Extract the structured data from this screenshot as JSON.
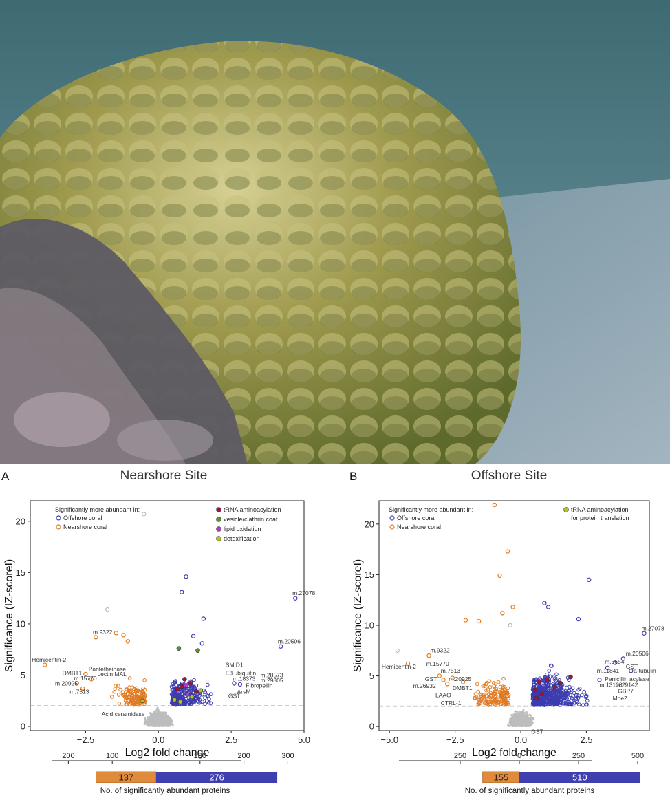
{
  "colors": {
    "offshore": "#3b3cb0",
    "nearshore": "#e07a22",
    "nonsig": "#bdbdbd",
    "trna": "#a0134a",
    "vesicle": "#4f9a2b",
    "lipid": "#b43cc8",
    "detox": "#b8c21a",
    "bar_nearshore": "#e08a3c",
    "bar_offshore": "#3f3fb0"
  },
  "photo": {
    "icon": "coral-reef-photo"
  },
  "chart_data": [
    {
      "type": "scatter",
      "panel_label": "A",
      "title": "Nearshore Site",
      "xlabel": "Log2 fold change",
      "ylabel": "Significance (IZ-scoreI)",
      "xlim": [
        -4.4,
        5.0
      ],
      "ylim": [
        -0.4,
        22
      ],
      "x_ticks": [
        -2.5,
        0.0,
        2.5,
        5.0
      ],
      "x_tick_labels": [
        "−2.5",
        "0.0",
        "2.5",
        "5.0"
      ],
      "y_ticks": [
        0,
        5,
        10,
        15,
        20
      ],
      "y_tick_labels": [
        "0",
        "5",
        "10",
        "15",
        "20"
      ],
      "threshold": 2.0,
      "grid": false,
      "legend_heading": "Significantly more abundant in:",
      "legend_groups": [
        {
          "name": "Offshore coral",
          "color": "#3b3cb0"
        },
        {
          "name": "Nearshore coral",
          "color": "#e07a22"
        }
      ],
      "legend_categories": [
        {
          "name": "tRNA aminoacylation",
          "color": "#a0134a"
        },
        {
          "name": "vesicle/clathrin coat",
          "color": "#4f9a2b"
        },
        {
          "name": "lipid oxidation",
          "color": "#b43cc8"
        },
        {
          "name": "detoxification",
          "color": "#b8c21a"
        }
      ],
      "highlight_points": [
        {
          "x": 4.7,
          "y": 12.5,
          "group": "offshore"
        },
        {
          "x": 4.2,
          "y": 7.8,
          "group": "offshore"
        },
        {
          "x": 0.95,
          "y": 14.6,
          "group": "offshore"
        },
        {
          "x": 0.8,
          "y": 13.1,
          "group": "offshore"
        },
        {
          "x": 1.55,
          "y": 10.5,
          "group": "offshore"
        },
        {
          "x": 1.2,
          "y": 8.8,
          "group": "offshore"
        },
        {
          "x": 1.5,
          "y": 8.1,
          "group": "offshore"
        },
        {
          "x": 2.6,
          "y": 4.2,
          "group": "offshore"
        },
        {
          "x": 2.8,
          "y": 4.1,
          "group": "offshore"
        },
        {
          "x": -3.9,
          "y": 6.0,
          "group": "nearshore"
        },
        {
          "x": -2.15,
          "y": 8.7,
          "group": "nearshore"
        },
        {
          "x": -1.45,
          "y": 9.1,
          "group": "nearshore"
        },
        {
          "x": -1.2,
          "y": 8.9,
          "group": "nearshore"
        },
        {
          "x": -1.05,
          "y": 8.3,
          "group": "nearshore"
        },
        {
          "x": -2.5,
          "y": 5.1,
          "group": "nearshore"
        },
        {
          "x": -2.8,
          "y": 4.2,
          "group": "nearshore"
        },
        {
          "x": -2.6,
          "y": 3.7,
          "group": "nearshore"
        },
        {
          "x": -2.3,
          "y": 4.6,
          "group": "nearshore"
        },
        {
          "x": -1.75,
          "y": 11.4,
          "group": "nonsig"
        },
        {
          "x": -0.5,
          "y": 20.7,
          "group": "nonsig"
        },
        {
          "x": 0.7,
          "y": 7.6,
          "group": "vesicle"
        },
        {
          "x": 1.35,
          "y": 7.4,
          "group": "vesicle"
        },
        {
          "x": 0.9,
          "y": 4.6,
          "group": "trna"
        },
        {
          "x": 1.1,
          "y": 4.2,
          "group": "trna"
        },
        {
          "x": 0.8,
          "y": 3.9,
          "group": "trna"
        },
        {
          "x": 1.3,
          "y": 3.4,
          "group": "trna"
        },
        {
          "x": 0.65,
          "y": 3.6,
          "group": "trna"
        },
        {
          "x": 1.0,
          "y": 3.1,
          "group": "lipid"
        },
        {
          "x": 0.95,
          "y": 4.0,
          "group": "lipid"
        },
        {
          "x": 0.55,
          "y": 2.6,
          "group": "detox"
        },
        {
          "x": 0.75,
          "y": 2.4,
          "group": "detox"
        },
        {
          "x": 1.15,
          "y": 2.9,
          "group": "detox"
        },
        {
          "x": 1.45,
          "y": 3.5,
          "group": "detox"
        },
        {
          "x": -0.55,
          "y": 2.5,
          "group": "detox"
        }
      ],
      "annotations": [
        {
          "text": "m.27078",
          "x": 4.6,
          "y": 12.8
        },
        {
          "text": "m.20506",
          "x": 4.1,
          "y": 8.1
        },
        {
          "text": "m.9322",
          "x": -2.25,
          "y": 9.0
        },
        {
          "text": "Hemicentin-2",
          "x": -4.35,
          "y": 6.3
        },
        {
          "text": "DMBT1",
          "x": -3.3,
          "y": 5.0
        },
        {
          "text": "Pantetheinase",
          "x": -2.4,
          "y": 5.4
        },
        {
          "text": "Lectin MAL",
          "x": -2.1,
          "y": 4.9
        },
        {
          "text": "m.15770",
          "x": -2.9,
          "y": 4.5
        },
        {
          "text": "m.20925",
          "x": -3.55,
          "y": 4.0
        },
        {
          "text": "m.7513",
          "x": -3.05,
          "y": 3.2
        },
        {
          "text": "Acid ceramidase",
          "x": -1.95,
          "y": 1.0
        },
        {
          "text": "SM D1",
          "x": 2.3,
          "y": 5.8
        },
        {
          "text": "E3 ubiquitin",
          "x": 2.3,
          "y": 5.0
        },
        {
          "text": "m.18373",
          "x": 2.55,
          "y": 4.45
        },
        {
          "text": "m.28573",
          "x": 3.5,
          "y": 4.8
        },
        {
          "text": "m.29805",
          "x": 3.5,
          "y": 4.3
        },
        {
          "text": "Fibropellin",
          "x": 3.0,
          "y": 3.8
        },
        {
          "text": "ArsM",
          "x": 2.7,
          "y": 3.2
        },
        {
          "text": "GST",
          "x": 2.4,
          "y": 2.8
        }
      ],
      "bar_axis_ticks": [
        200,
        100,
        100,
        200,
        300
      ],
      "bar_axis_tick_labels": [
        "200",
        "100",
        "100",
        "200",
        "300"
      ],
      "counts": {
        "nearshore": 137,
        "offshore": 276
      },
      "count_caption": "No. of significantly abundant proteins"
    },
    {
      "type": "scatter",
      "panel_label": "B",
      "title": "Offshore Site",
      "xlabel": "Log2 fold change",
      "ylabel": "Significance (IZ-scoreI)",
      "xlim": [
        -5.4,
        4.9
      ],
      "ylim": [
        -0.4,
        22.3
      ],
      "x_ticks": [
        -5.0,
        -2.5,
        0.0,
        2.5
      ],
      "x_tick_labels": [
        "−5.0",
        "−2.5",
        "0.0",
        "2.5"
      ],
      "y_ticks": [
        0,
        5,
        10,
        15,
        20
      ],
      "y_tick_labels": [
        "0",
        "5",
        "10",
        "15",
        "20"
      ],
      "threshold": 2.0,
      "grid": false,
      "legend_heading": "Significantly more abundant in:",
      "legend_groups": [
        {
          "name": "Offshore coral",
          "color": "#3b3cb0"
        },
        {
          "name": "Nearshore coral",
          "color": "#e07a22"
        }
      ],
      "legend_categories": [
        {
          "name": "tRNA aminoacylation",
          "name2": "for protein translation",
          "color": "#b8c21a"
        }
      ],
      "highlight_points": [
        {
          "x": -1.0,
          "y": 21.9,
          "group": "nearshore"
        },
        {
          "x": -0.5,
          "y": 17.3,
          "group": "nearshore"
        },
        {
          "x": -0.8,
          "y": 14.9,
          "group": "nearshore"
        },
        {
          "x": -0.3,
          "y": 11.8,
          "group": "nearshore"
        },
        {
          "x": -0.7,
          "y": 11.2,
          "group": "nearshore"
        },
        {
          "x": -2.1,
          "y": 10.5,
          "group": "nearshore"
        },
        {
          "x": -1.6,
          "y": 10.4,
          "group": "nearshore"
        },
        {
          "x": -3.5,
          "y": 7.0,
          "group": "nearshore"
        },
        {
          "x": -4.3,
          "y": 6.2,
          "group": "nearshore"
        },
        {
          "x": -3.1,
          "y": 5.0,
          "group": "nearshore"
        },
        {
          "x": -2.95,
          "y": 4.6,
          "group": "nearshore"
        },
        {
          "x": -2.6,
          "y": 4.8,
          "group": "nearshore"
        },
        {
          "x": -2.8,
          "y": 4.2,
          "group": "nearshore"
        },
        {
          "x": -2.2,
          "y": 4.4,
          "group": "nearshore"
        },
        {
          "x": -4.7,
          "y": 7.5,
          "group": "nonsig"
        },
        {
          "x": -0.4,
          "y": 10.0,
          "group": "nonsig"
        },
        {
          "x": 0.9,
          "y": 12.2,
          "group": "offshore"
        },
        {
          "x": 1.05,
          "y": 11.8,
          "group": "offshore"
        },
        {
          "x": 2.6,
          "y": 14.5,
          "group": "offshore"
        },
        {
          "x": 2.2,
          "y": 10.6,
          "group": "offshore"
        },
        {
          "x": 4.7,
          "y": 9.2,
          "group": "offshore"
        },
        {
          "x": 3.9,
          "y": 6.7,
          "group": "offshore"
        },
        {
          "x": 4.2,
          "y": 5.5,
          "group": "offshore"
        },
        {
          "x": 3.6,
          "y": 6.3,
          "group": "offshore"
        },
        {
          "x": 3.3,
          "y": 5.8,
          "group": "offshore"
        },
        {
          "x": 3.0,
          "y": 4.6,
          "group": "offshore"
        },
        {
          "x": 0.7,
          "y": 4.4,
          "group": "trna"
        },
        {
          "x": 1.0,
          "y": 4.6,
          "group": "trna"
        },
        {
          "x": 1.3,
          "y": 3.9,
          "group": "trna"
        },
        {
          "x": 0.55,
          "y": 3.6,
          "group": "trna"
        },
        {
          "x": 1.5,
          "y": 4.3,
          "group": "trna"
        },
        {
          "x": 0.8,
          "y": 3.2,
          "group": "trna"
        },
        {
          "x": 1.9,
          "y": 4.9,
          "group": "trna"
        },
        {
          "x": 0.6,
          "y": 2.8,
          "group": "trna"
        }
      ],
      "annotations": [
        {
          "text": "m.27078",
          "x": 4.6,
          "y": 9.5
        },
        {
          "text": "m.20506",
          "x": 4.0,
          "y": 7.0
        },
        {
          "text": "m.9322",
          "x": -3.45,
          "y": 7.3
        },
        {
          "text": "Hemicentin-2",
          "x": -5.3,
          "y": 5.7
        },
        {
          "text": "m.15770",
          "x": -3.6,
          "y": 6.0
        },
        {
          "text": "m.7513",
          "x": -3.05,
          "y": 5.3
        },
        {
          "text": "GST",
          "x": -3.65,
          "y": 4.5
        },
        {
          "text": "m.20925",
          "x": -2.75,
          "y": 4.5
        },
        {
          "text": "m.26932",
          "x": -4.1,
          "y": 3.8
        },
        {
          "text": "DMBT1",
          "x": -2.6,
          "y": 3.6
        },
        {
          "text": "LAAO",
          "x": -3.25,
          "y": 2.9
        },
        {
          "text": "CTRL-1",
          "x": -3.05,
          "y": 2.1
        },
        {
          "text": "GST",
          "x": 0.4,
          "y": -0.7
        },
        {
          "text": "m.3654",
          "x": 3.2,
          "y": 6.2
        },
        {
          "text": "GST",
          "x": 4.0,
          "y": 5.7
        },
        {
          "text": "m.11841",
          "x": 2.9,
          "y": 5.3
        },
        {
          "text": "a-tubulin",
          "x": 4.3,
          "y": 5.3
        },
        {
          "text": "Penicillin acylase",
          "x": 3.2,
          "y": 4.5
        },
        {
          "text": "m.13108",
          "x": 3.0,
          "y": 3.9
        },
        {
          "text": "m.29142",
          "x": 3.6,
          "y": 3.9
        },
        {
          "text": "GBP7",
          "x": 3.7,
          "y": 3.3
        },
        {
          "text": "MoeZ",
          "x": 3.5,
          "y": 2.6
        }
      ],
      "bar_axis_ticks": [
        250,
        0,
        250,
        500
      ],
      "bar_axis_tick_labels": [
        "250",
        "0",
        "250",
        "500"
      ],
      "counts": {
        "nearshore": 155,
        "offshore": 510
      },
      "count_caption": "No. of significantly abundant proteins"
    }
  ]
}
